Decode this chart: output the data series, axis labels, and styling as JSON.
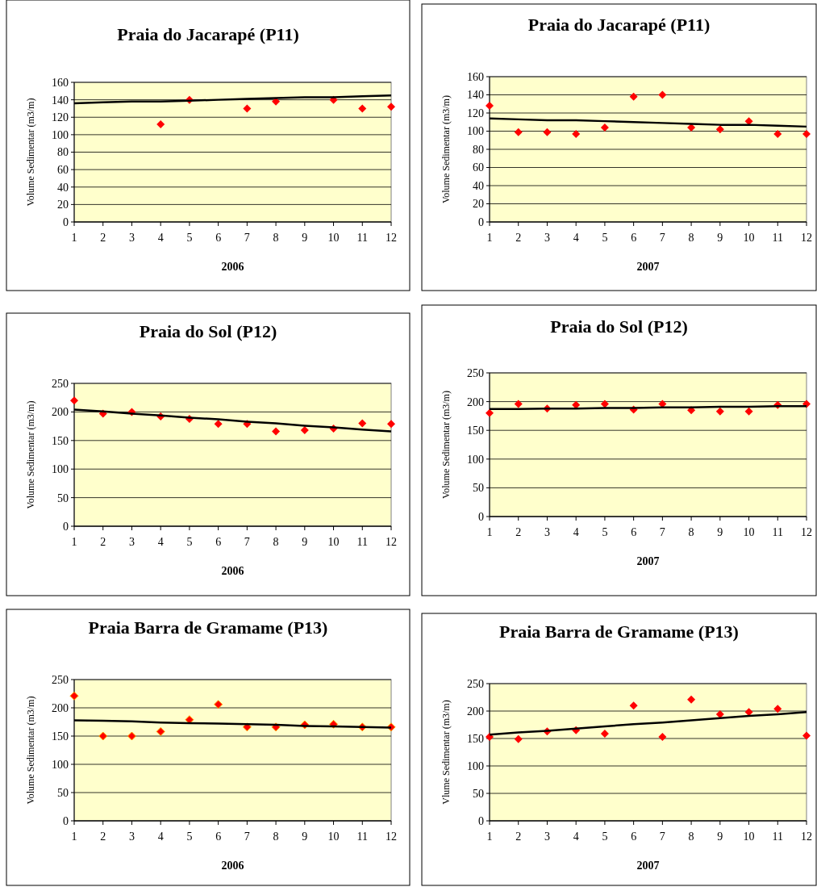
{
  "chart_data": [
    {
      "type": "scatter",
      "title": "Praia do Jacarapé (P11)",
      "xlabel": "2006",
      "ylabel": "Volume Sedimentar (m3/m)",
      "xlim": [
        1,
        12
      ],
      "xticks": [
        1,
        2,
        3,
        4,
        5,
        6,
        7,
        8,
        9,
        10,
        11,
        12
      ],
      "ylim": [
        0,
        160
      ],
      "yticks": [
        0,
        20,
        40,
        60,
        80,
        100,
        120,
        140,
        160
      ],
      "grid": "y",
      "x": [
        1,
        2,
        3,
        4,
        5,
        6,
        7,
        8,
        9,
        10,
        11,
        12
      ],
      "series": [
        {
          "color": "#ff0000",
          "marker": "diamond",
          "values": [
            null,
            null,
            null,
            112,
            140,
            null,
            130,
            138,
            null,
            140,
            130,
            132
          ]
        },
        {
          "type": "line",
          "color": "#000000",
          "marker": "none",
          "values": [
            136,
            137,
            138,
            138,
            139,
            140,
            141,
            142,
            143,
            143,
            144,
            145
          ]
        }
      ]
    },
    {
      "type": "scatter",
      "title": "Praia do Jacarapé (P11)",
      "xlabel": "2007",
      "ylabel": "Volume Sedimentar (m3/m)",
      "xlim": [
        1,
        12
      ],
      "xticks": [
        1,
        2,
        3,
        4,
        5,
        6,
        7,
        8,
        9,
        10,
        11,
        12
      ],
      "ylim": [
        0,
        160
      ],
      "yticks": [
        0,
        20,
        40,
        60,
        80,
        100,
        120,
        140,
        160
      ],
      "grid": "y",
      "x": [
        1,
        2,
        3,
        4,
        5,
        6,
        7,
        8,
        9,
        10,
        11,
        12
      ],
      "series": [
        {
          "color": "#ff0000",
          "marker": "diamond",
          "values": [
            128,
            99,
            99,
            97,
            104,
            138,
            140,
            104,
            102,
            111,
            97,
            97
          ]
        },
        {
          "type": "line",
          "color": "#000000",
          "marker": "none",
          "values": [
            114,
            113,
            112,
            112,
            111,
            110,
            109,
            108,
            107,
            107,
            106,
            105
          ]
        }
      ]
    },
    {
      "type": "scatter",
      "title": "Praia do Sol (P12)",
      "xlabel": "2006",
      "ylabel": "Volume Sedimentar (m3/m)",
      "xlim": [
        1,
        12
      ],
      "xticks": [
        1,
        2,
        3,
        4,
        5,
        6,
        7,
        8,
        9,
        10,
        11,
        12
      ],
      "ylim": [
        0,
        250
      ],
      "yticks": [
        0,
        50,
        100,
        150,
        200,
        250
      ],
      "grid": "y",
      "x": [
        1,
        2,
        3,
        4,
        5,
        6,
        7,
        8,
        9,
        10,
        11,
        12
      ],
      "series": [
        {
          "color": "#ff0000",
          "marker": "diamond",
          "values": [
            220,
            197,
            200,
            192,
            188,
            179,
            179,
            166,
            168,
            171,
            180,
            179
          ]
        },
        {
          "type": "line",
          "color": "#000000",
          "marker": "none",
          "values": [
            204,
            201,
            197,
            194,
            190,
            187,
            183,
            180,
            176,
            173,
            169,
            166
          ]
        }
      ]
    },
    {
      "type": "scatter",
      "title": "Praia do Sol (P12)",
      "xlabel": "2007",
      "ylabel": "Volume Sedimentar (m3/m)",
      "xlim": [
        1,
        12
      ],
      "xticks": [
        1,
        2,
        3,
        4,
        5,
        6,
        7,
        8,
        9,
        10,
        11,
        12
      ],
      "ylim": [
        0,
        250
      ],
      "yticks": [
        0,
        50,
        100,
        150,
        200,
        250
      ],
      "grid": "y",
      "x": [
        1,
        2,
        3,
        4,
        5,
        6,
        7,
        8,
        9,
        10,
        11,
        12
      ],
      "series": [
        {
          "color": "#ff0000",
          "marker": "diamond",
          "values": [
            180,
            196,
            188,
            194,
            196,
            186,
            196,
            185,
            183,
            183,
            194,
            196
          ]
        },
        {
          "type": "line",
          "color": "#000000",
          "marker": "none",
          "values": [
            187,
            187,
            188,
            188,
            189,
            189,
            190,
            190,
            191,
            191,
            192,
            192
          ]
        }
      ]
    },
    {
      "type": "scatter",
      "title": "Praia Barra de Gramame (P13)",
      "xlabel": "2006",
      "ylabel": "Volume Sedimentar (m3/m)",
      "xlim": [
        1,
        12
      ],
      "xticks": [
        1,
        2,
        3,
        4,
        5,
        6,
        7,
        8,
        9,
        10,
        11,
        12
      ],
      "ylim": [
        0,
        250
      ],
      "yticks": [
        0,
        50,
        100,
        150,
        200,
        250
      ],
      "grid": "y",
      "x": [
        1,
        2,
        3,
        4,
        5,
        6,
        7,
        8,
        9,
        10,
        11,
        12
      ],
      "series": [
        {
          "color": "#ff0000",
          "marker": "diamond",
          "values": [
            221,
            150,
            150,
            158,
            179,
            206,
            166,
            166,
            170,
            171,
            166,
            166
          ]
        },
        {
          "type": "line",
          "color": "#000000",
          "marker": "none",
          "values": [
            178,
            177,
            176,
            174,
            173,
            172,
            171,
            170,
            168,
            167,
            166,
            165
          ]
        }
      ]
    },
    {
      "type": "scatter",
      "title": "Praia Barra de Gramame (P13)",
      "xlabel": "2007",
      "ylabel": "Vlume Sedimentar (m3/m)",
      "xlim": [
        1,
        12
      ],
      "xticks": [
        1,
        2,
        3,
        4,
        5,
        6,
        7,
        8,
        9,
        10,
        11,
        12
      ],
      "ylim": [
        0,
        250
      ],
      "yticks": [
        0,
        50,
        100,
        150,
        200,
        250
      ],
      "grid": "y",
      "x": [
        1,
        2,
        3,
        4,
        5,
        6,
        7,
        8,
        9,
        10,
        11,
        12
      ],
      "series": [
        {
          "color": "#ff0000",
          "marker": "diamond",
          "values": [
            153,
            149,
            163,
            165,
            159,
            210,
            153,
            221,
            194,
            198,
            204,
            155
          ]
        },
        {
          "type": "line",
          "color": "#000000",
          "marker": "none",
          "values": [
            157,
            161,
            164,
            168,
            172,
            176,
            179,
            183,
            187,
            191,
            194,
            198
          ]
        }
      ]
    }
  ]
}
